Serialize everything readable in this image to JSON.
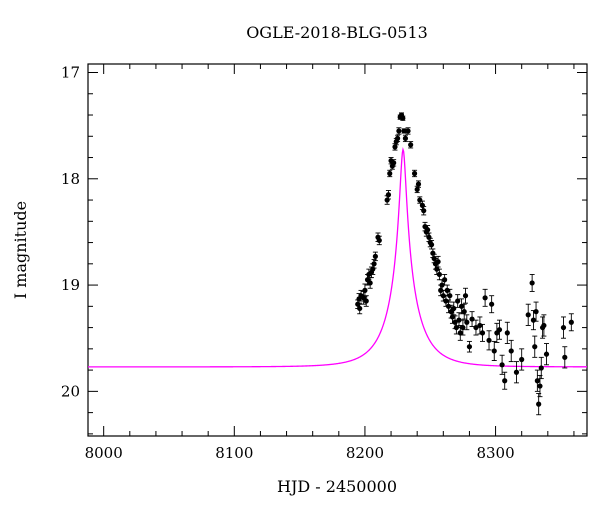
{
  "chart_data": {
    "type": "scatter",
    "title": "OGLE-2018-BLG-0513",
    "xlabel": "HJD - 2450000",
    "ylabel": "I magnitude",
    "xlim": [
      7988,
      8370
    ],
    "ylim": [
      20.42,
      16.92
    ],
    "y_inverted": true,
    "x_major_ticks": [
      8000,
      8100,
      8200,
      8300
    ],
    "y_major_ticks": [
      17,
      18,
      19,
      20
    ],
    "grid": false,
    "colors": {
      "model": "#ff00ff",
      "points": "#000000"
    },
    "series": [
      {
        "type": "scatter_with_errorbars",
        "points": [
          [
            8194.5,
            19.18,
            0.04
          ],
          [
            8195.5,
            19.13,
            0.05
          ],
          [
            8196.0,
            19.22,
            0.05
          ],
          [
            8197.0,
            19.1,
            0.05
          ],
          [
            8199.0,
            19.12,
            0.06
          ],
          [
            8200.0,
            19.05,
            0.06
          ],
          [
            8201.0,
            19.15,
            0.05
          ],
          [
            8202.0,
            18.95,
            0.05
          ],
          [
            8203.0,
            18.9,
            0.05
          ],
          [
            8204.0,
            18.98,
            0.05
          ],
          [
            8205.0,
            18.88,
            0.05
          ],
          [
            8206.0,
            18.85,
            0.05
          ],
          [
            8207.0,
            18.8,
            0.04
          ],
          [
            8208.0,
            18.73,
            0.04
          ],
          [
            8210.0,
            18.55,
            0.04
          ],
          [
            8211.0,
            18.58,
            0.04
          ],
          [
            8217.0,
            18.2,
            0.04
          ],
          [
            8218.0,
            18.15,
            0.04
          ],
          [
            8219.0,
            17.95,
            0.03
          ],
          [
            8220.0,
            17.83,
            0.03
          ],
          [
            8221.0,
            17.88,
            0.03
          ],
          [
            8222.0,
            17.85,
            0.03
          ],
          [
            8223.0,
            17.7,
            0.03
          ],
          [
            8224.0,
            17.65,
            0.03
          ],
          [
            8225.0,
            17.62,
            0.03
          ],
          [
            8226.0,
            17.55,
            0.03
          ],
          [
            8227.0,
            17.42,
            0.02
          ],
          [
            8228.0,
            17.4,
            0.02
          ],
          [
            8229.0,
            17.43,
            0.02
          ],
          [
            8230.0,
            17.55,
            0.02
          ],
          [
            8231.0,
            17.62,
            0.03
          ],
          [
            8233.0,
            17.55,
            0.03
          ],
          [
            8235.0,
            17.68,
            0.03
          ],
          [
            8238.0,
            17.95,
            0.03
          ],
          [
            8240.0,
            18.1,
            0.03
          ],
          [
            8241.0,
            18.05,
            0.03
          ],
          [
            8242.0,
            18.2,
            0.03
          ],
          [
            8244.0,
            18.25,
            0.04
          ],
          [
            8245.0,
            18.3,
            0.04
          ],
          [
            8246.0,
            18.45,
            0.04
          ],
          [
            8247.0,
            18.5,
            0.04
          ],
          [
            8248.0,
            18.48,
            0.04
          ],
          [
            8249.0,
            18.55,
            0.04
          ],
          [
            8250.0,
            18.6,
            0.04
          ],
          [
            8251.0,
            18.62,
            0.04
          ],
          [
            8252.0,
            18.7,
            0.04
          ],
          [
            8253.0,
            18.75,
            0.04
          ],
          [
            8254.0,
            18.8,
            0.05
          ],
          [
            8255.0,
            18.85,
            0.05
          ],
          [
            8256.0,
            18.78,
            0.05
          ],
          [
            8257.0,
            18.9,
            0.05
          ],
          [
            8258.0,
            19.05,
            0.05
          ],
          [
            8259.0,
            19.0,
            0.05
          ],
          [
            8260.0,
            19.1,
            0.05
          ],
          [
            8261.0,
            18.95,
            0.05
          ],
          [
            8262.0,
            19.15,
            0.05
          ],
          [
            8263.0,
            19.05,
            0.05
          ],
          [
            8264.0,
            19.2,
            0.06
          ],
          [
            8265.0,
            19.1,
            0.06
          ],
          [
            8266.0,
            19.25,
            0.06
          ],
          [
            8267.0,
            19.3,
            0.06
          ],
          [
            8268.0,
            19.22,
            0.06
          ],
          [
            8269.0,
            19.35,
            0.06
          ],
          [
            8270.0,
            19.4,
            0.06
          ],
          [
            8271.0,
            19.15,
            0.06
          ],
          [
            8272.0,
            19.33,
            0.07
          ],
          [
            8273.0,
            19.45,
            0.07
          ],
          [
            8274.0,
            19.2,
            0.07
          ],
          [
            8275.0,
            19.4,
            0.07
          ],
          [
            8276.0,
            19.25,
            0.07
          ],
          [
            8277.0,
            19.1,
            0.07
          ],
          [
            8278.0,
            19.35,
            0.07
          ],
          [
            8280.0,
            19.58,
            0.05
          ],
          [
            8282.0,
            19.32,
            0.07
          ],
          [
            8285.0,
            19.4,
            0.07
          ],
          [
            8288.0,
            19.38,
            0.08
          ],
          [
            8290.0,
            19.45,
            0.08
          ],
          [
            8292.0,
            19.12,
            0.08
          ],
          [
            8295.0,
            19.52,
            0.09
          ],
          [
            8297.0,
            19.18,
            0.08
          ],
          [
            8299.0,
            19.62,
            0.09
          ],
          [
            8301.0,
            19.45,
            0.09
          ],
          [
            8303.0,
            19.42,
            0.09
          ],
          [
            8305.0,
            19.75,
            0.09
          ],
          [
            8307.0,
            19.9,
            0.08
          ],
          [
            8309.0,
            19.45,
            0.1
          ],
          [
            8312.0,
            19.62,
            0.1
          ],
          [
            8316.0,
            19.82,
            0.1
          ],
          [
            8320.0,
            19.7,
            0.1
          ],
          [
            8325.0,
            19.28,
            0.1
          ],
          [
            8328.0,
            18.98,
            0.08
          ],
          [
            8329.0,
            19.33,
            0.09
          ],
          [
            8330.0,
            19.58,
            0.1
          ],
          [
            8331.0,
            19.25,
            0.09
          ],
          [
            8332.0,
            19.9,
            0.1
          ],
          [
            8333.0,
            20.12,
            0.1
          ],
          [
            8334.0,
            19.95,
            0.1
          ],
          [
            8335.0,
            19.78,
            0.1
          ],
          [
            8336.0,
            19.4,
            0.1
          ],
          [
            8337.0,
            19.38,
            0.1
          ],
          [
            8339.0,
            19.65,
            0.1
          ],
          [
            8352.0,
            19.4,
            0.1
          ],
          [
            8353.0,
            19.68,
            0.1
          ],
          [
            8358.0,
            19.35,
            0.08
          ]
        ]
      },
      {
        "type": "model_curve",
        "model": {
          "t0": 8229.2,
          "tE": 24.0,
          "u0": 0.09,
          "base_mag": 19.77,
          "blend_fraction": 0.55
        }
      }
    ]
  }
}
